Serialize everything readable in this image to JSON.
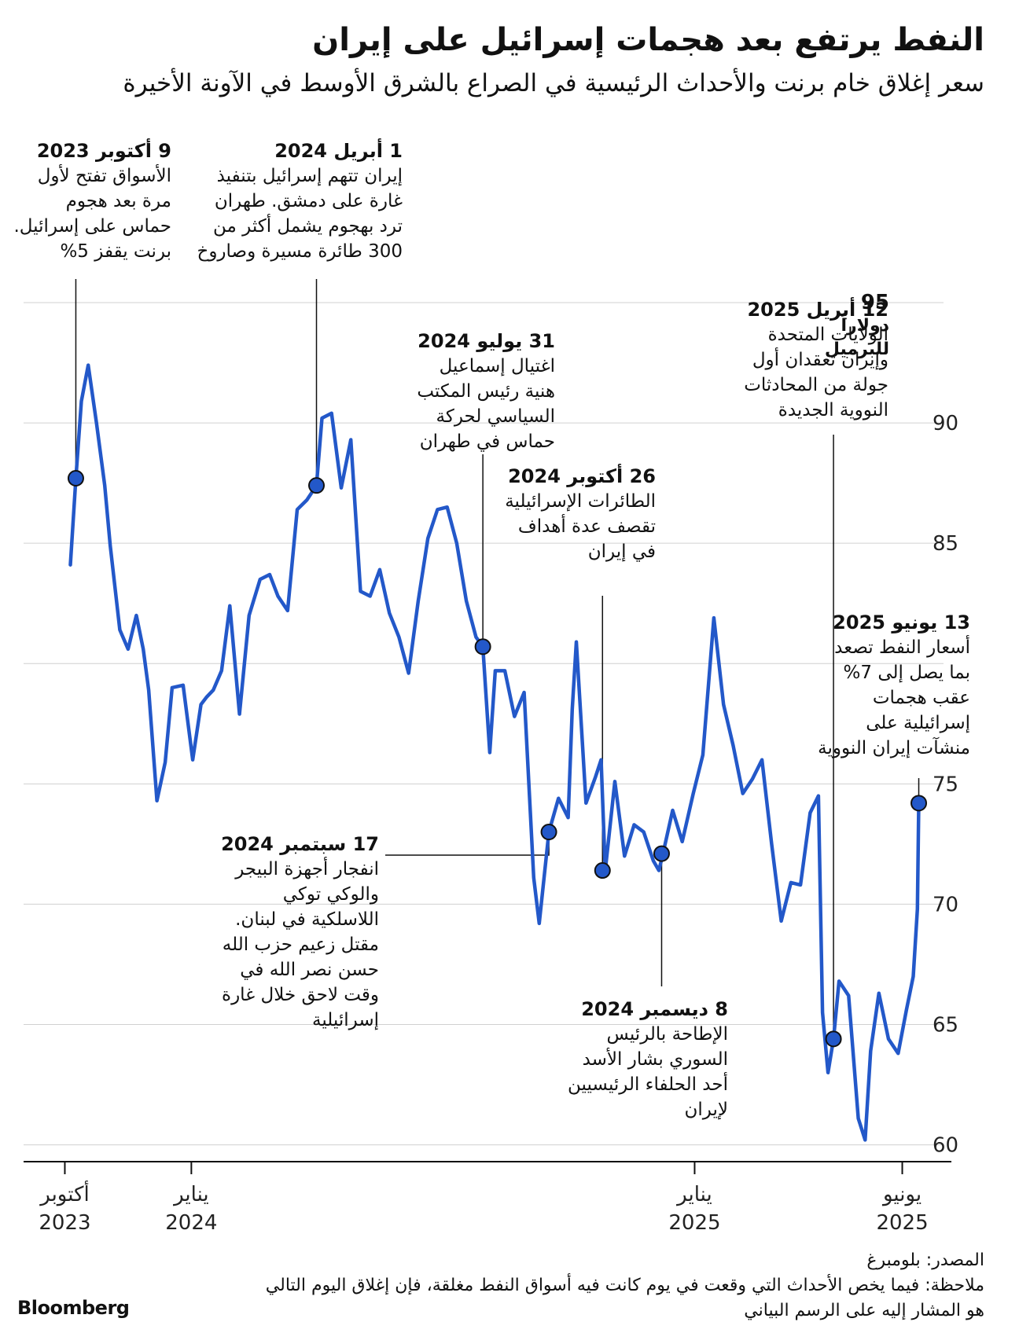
{
  "header": {
    "title": "النفط يرتفع بعد هجمات إسرائيل على إيران",
    "subtitle": "سعر إغلاق خام برنت والأحداث الرئيسية في الصراع بالشرق الأوسط في الآونة الأخيرة"
  },
  "chart_data": {
    "type": "line",
    "title": "النفط يرتفع بعد هجمات إسرائيل على إيران",
    "subtitle": "سعر إغلاق خام برنت والأحداث الرئيسية في الصراع بالشرق الأوسط في الآونة الأخيرة",
    "unit_value": "95",
    "unit_label": "دولاراً للبرميل",
    "ylim": [
      59.3,
      95
    ],
    "yticks": [
      60,
      65,
      70,
      75,
      85,
      90
    ],
    "xlim": [
      "2023-09-01",
      "2025-07-01"
    ],
    "xticks": [
      {
        "date": "2023-10-01",
        "label": "أكتوبر",
        "year": "2023"
      },
      {
        "date": "2024-01-01",
        "label": "يناير",
        "year": "2024"
      },
      {
        "date": "2025-01-01",
        "label": "يناير",
        "year": "2025"
      },
      {
        "date": "2025-06-01",
        "label": "يونيو",
        "year": "2025"
      }
    ],
    "grid": true,
    "line_color": "#2358c9",
    "series": [
      {
        "x": [
          "2023-10-05",
          "2023-10-09",
          "2023-10-13",
          "2023-10-18",
          "2023-10-24",
          "2023-10-30",
          "2023-11-03",
          "2023-11-10",
          "2023-11-16",
          "2023-11-22",
          "2023-11-27",
          "2023-12-01",
          "2023-12-07",
          "2023-12-13",
          "2023-12-18",
          "2023-12-26",
          "2024-01-02",
          "2024-01-08",
          "2024-01-12",
          "2024-01-17",
          "2024-01-23",
          "2024-01-29",
          "2024-02-05",
          "2024-02-12",
          "2024-02-20",
          "2024-02-27",
          "2024-03-04",
          "2024-03-11",
          "2024-03-18",
          "2024-03-25",
          "2024-04-01",
          "2024-04-05",
          "2024-04-12",
          "2024-04-19",
          "2024-04-26",
          "2024-05-03",
          "2024-05-10",
          "2024-05-17",
          "2024-05-24",
          "2024-05-31",
          "2024-06-07",
          "2024-06-14",
          "2024-06-21",
          "2024-06-28",
          "2024-07-05",
          "2024-07-12",
          "2024-07-19",
          "2024-07-26",
          "2024-07-31",
          "2024-08-05",
          "2024-08-09",
          "2024-08-16",
          "2024-08-23",
          "2024-08-30",
          "2024-09-06",
          "2024-09-10",
          "2024-09-17",
          "2024-09-24",
          "2024-10-01",
          "2024-10-04",
          "2024-10-07",
          "2024-10-14",
          "2024-10-21",
          "2024-10-25",
          "2024-10-28",
          "2024-11-04",
          "2024-11-11",
          "2024-11-18",
          "2024-11-25",
          "2024-12-02",
          "2024-12-06",
          "2024-12-09",
          "2024-12-16",
          "2024-12-23",
          "2024-12-31",
          "2025-01-07",
          "2025-01-15",
          "2025-01-22",
          "2025-01-29",
          "2025-02-05",
          "2025-02-12",
          "2025-02-19",
          "2025-02-26",
          "2025-03-05",
          "2025-03-12",
          "2025-03-19",
          "2025-03-26",
          "2025-04-01",
          "2025-04-04",
          "2025-04-08",
          "2025-04-12",
          "2025-04-16",
          "2025-04-23",
          "2025-04-30",
          "2025-05-05",
          "2025-05-09",
          "2025-05-15",
          "2025-05-22",
          "2025-05-29",
          "2025-06-04",
          "2025-06-09",
          "2025-06-12",
          "2025-06-13"
        ],
        "y": [
          84.1,
          87.7,
          90.9,
          92.4,
          90.0,
          87.4,
          84.9,
          81.4,
          80.6,
          82.0,
          80.6,
          78.9,
          74.3,
          75.9,
          79.0,
          79.1,
          76.0,
          78.3,
          78.6,
          78.9,
          79.7,
          82.4,
          77.9,
          82.0,
          83.5,
          83.7,
          82.8,
          82.2,
          86.4,
          86.8,
          87.4,
          90.2,
          90.4,
          87.3,
          89.3,
          83.0,
          82.8,
          83.9,
          82.1,
          81.1,
          79.6,
          82.6,
          85.2,
          86.4,
          86.5,
          85.0,
          82.6,
          81.1,
          80.7,
          76.3,
          79.7,
          79.7,
          77.8,
          78.8,
          71.1,
          69.2,
          73.0,
          74.4,
          73.6,
          78.1,
          80.9,
          74.2,
          75.3,
          76.0,
          71.4,
          75.1,
          72.0,
          73.3,
          73.0,
          71.8,
          71.4,
          72.1,
          73.9,
          72.6,
          74.6,
          76.2,
          81.9,
          78.3,
          76.6,
          74.6,
          75.2,
          76.0,
          72.5,
          69.3,
          70.9,
          70.8,
          73.8,
          74.5,
          65.5,
          63.0,
          64.4,
          66.8,
          66.2,
          61.1,
          60.2,
          63.9,
          66.3,
          64.4,
          63.8,
          65.6,
          67.0,
          69.8,
          74.2
        ]
      }
    ],
    "events": [
      {
        "id": "e1",
        "x": "2023-10-09",
        "y": 87.7,
        "date": "9 أكتوبر 2023",
        "text": "الأسواق تفتح لأول\nمرة بعد هجوم\nحماس على إسرائيل.\nبرنت يقفز 5%"
      },
      {
        "id": "e2",
        "x": "2024-04-01",
        "y": 87.4,
        "date": "1 أبريل 2024",
        "text": "إيران تتهم إسرائيل بتنفيذ\nغارة على دمشق. طهران\nترد بهجوم يشمل أكثر من\n300 طائرة مسيرة وصاروخ"
      },
      {
        "id": "e3",
        "x": "2024-07-31",
        "y": 80.7,
        "date": "31 يوليو 2024",
        "text": "اغتيال إسماعيل\nهنية رئيس المكتب\nالسياسي لحركة\nحماس في طهران"
      },
      {
        "id": "e4",
        "x": "2024-09-17",
        "y": 73.0,
        "date": "17 سبتمبر 2024",
        "text": "انفجار أجهزة البيجر\nوالوكي توكي\nاللاسلكية في لبنان.\nمقتل زعيم حزب الله\nحسن نصر الله في\nوقت لاحق خلال غارة\nإسرائيلية"
      },
      {
        "id": "e5",
        "x": "2024-10-26",
        "y": 71.4,
        "date": "26 أكتوبر 2024",
        "text": "الطائرات الإسرائيلية\nتقصف عدة أهداف\nفي إيران"
      },
      {
        "id": "e6",
        "x": "2024-12-08",
        "y": 72.1,
        "date": "8 ديسمبر 2024",
        "text": "الإطاحة بالرئيس\nالسوري بشار الأسد\nأحد الحلفاء الرئيسيين\nلإيران"
      },
      {
        "id": "e7",
        "x": "2025-04-12",
        "y": 64.4,
        "date": "12 أبريل 2025",
        "text": "الولايات المتحدة\nوإيران تعقدان أول\nجولة من المحادثات\nالنووية الجديدة"
      },
      {
        "id": "e8",
        "x": "2025-06-13",
        "y": 74.2,
        "date": "13 يونيو 2025",
        "text": "أسعار النفط تصعد\nبما يصل إلى 7%\nعقب هجمات\nإسرائيلية على\nمنشآت إيران النووية"
      }
    ]
  },
  "footer": {
    "source": "المصدر: بلومبرغ",
    "note": "ملاحظة: فيما يخص الأحداث التي وقعت في يوم كانت فيه أسواق النفط مغلقة، فإن إغلاق اليوم التالي\nهو المشار إليه على الرسم البياني",
    "logo": "Bloomberg"
  }
}
